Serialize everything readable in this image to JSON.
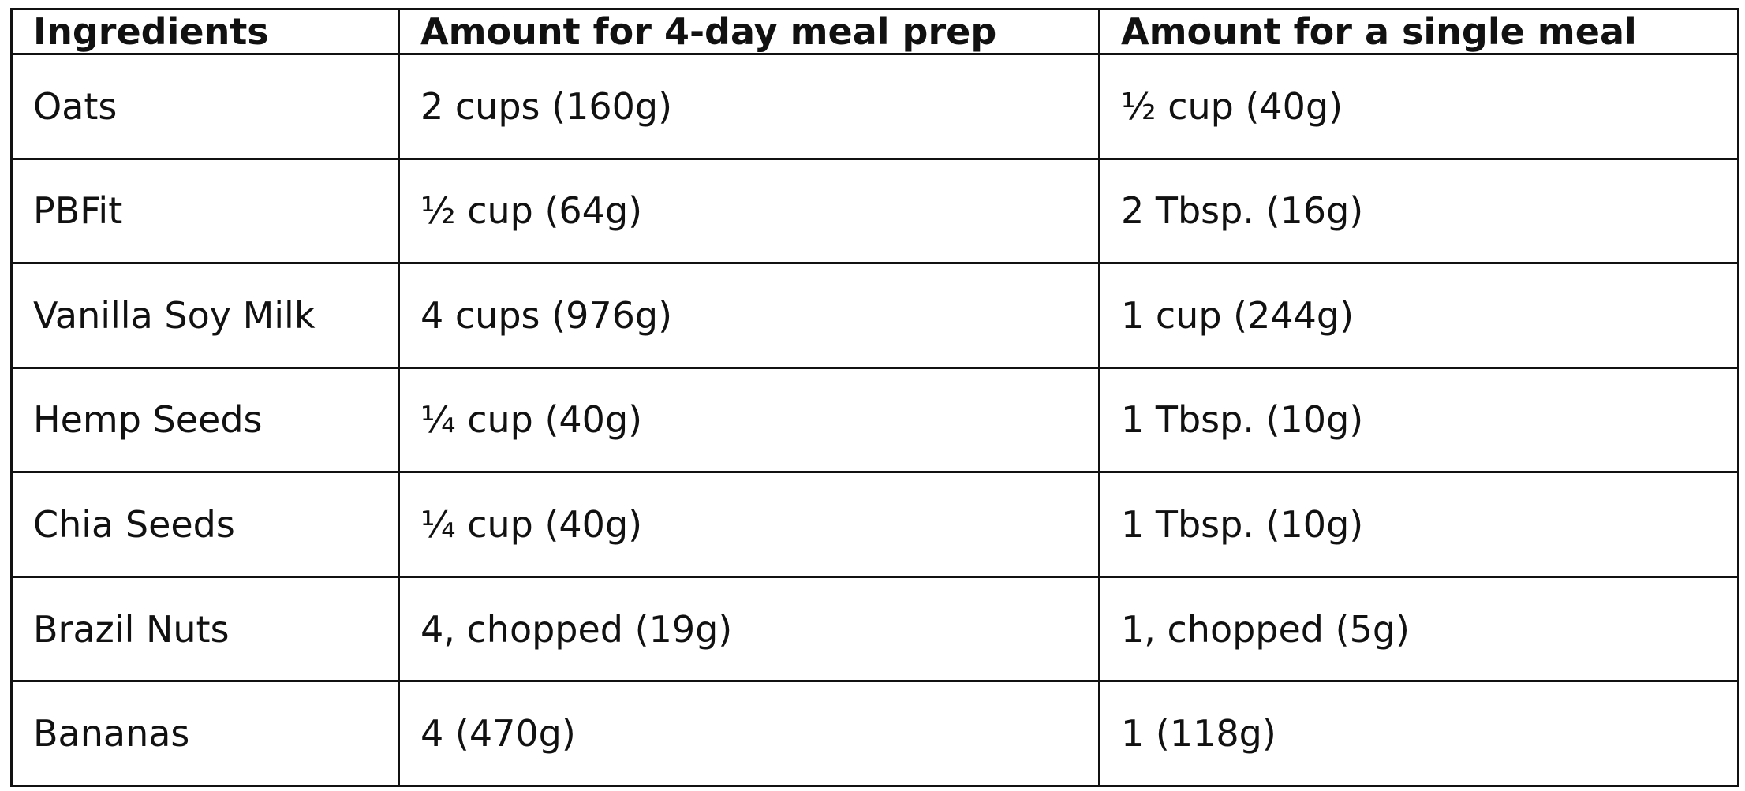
{
  "table": {
    "header": [
      "Ingredients",
      "Amount for 4-day meal prep",
      "Amount for a single meal"
    ],
    "rows": [
      [
        "Oats",
        "2 cups (160g)",
        "½ cup (40g)"
      ],
      [
        "PBFit",
        "½ cup (64g)",
        "2 Tbsp. (16g)"
      ],
      [
        "Vanilla Soy Milk",
        "4 cups (976g)",
        "1 cup (244g)"
      ],
      [
        "Hemp Seeds",
        "¼ cup (40g)",
        "1 Tbsp. (10g)"
      ],
      [
        "Chia Seeds",
        "¼ cup (40g)",
        "1 Tbsp. (10g)"
      ],
      [
        "Brazil Nuts",
        "4, chopped (19g)",
        "1, chopped (5g)"
      ],
      [
        "Bananas",
        "4 (470g)",
        "1 (118g)"
      ]
    ]
  }
}
